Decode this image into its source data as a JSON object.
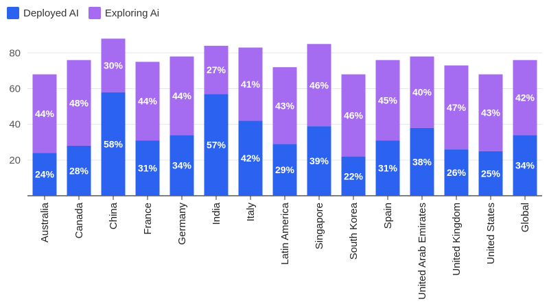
{
  "colors": {
    "deployed": "#2b63f0",
    "exploring": "#a56bf0",
    "grid": "#e6e6e6",
    "axis": "#333333"
  },
  "chart_data": {
    "type": "bar",
    "stacked": true,
    "legend_position": "top-left",
    "grid": true,
    "xlabel": "",
    "ylabel": "",
    "ylim": [
      0,
      92
    ],
    "yticks": [
      20,
      40,
      60,
      80
    ],
    "categories": [
      "Australia",
      "Canada",
      "China",
      "France",
      "Germany",
      "India",
      "Italy",
      "Latin America",
      "Singapore",
      "South Korea",
      "Spain",
      "United Arab Emirates",
      "United Kingdom",
      "United States",
      "Global"
    ],
    "series": [
      {
        "name": "Deployed AI",
        "color": "#2b63f0",
        "values": [
          24,
          28,
          58,
          31,
          34,
          57,
          42,
          29,
          39,
          22,
          31,
          38,
          26,
          25,
          34
        ]
      },
      {
        "name": "Exploring Ai",
        "color": "#a56bf0",
        "values": [
          44,
          48,
          30,
          44,
          44,
          27,
          41,
          43,
          46,
          46,
          45,
          40,
          47,
          43,
          42
        ]
      }
    ],
    "data_labels": [
      [
        "24%",
        "28%",
        "58%",
        "31%",
        "34%",
        "57%",
        "42%",
        "29%",
        "39%",
        "22%",
        "31%",
        "38%",
        "26%",
        "25%",
        "34%"
      ],
      [
        "44%",
        "48%",
        "30%",
        "44%",
        "44%",
        "27%",
        "41%",
        "43%",
        "46%",
        "46%",
        "45%",
        "40%",
        "47%",
        "43%",
        "42%"
      ]
    ]
  }
}
